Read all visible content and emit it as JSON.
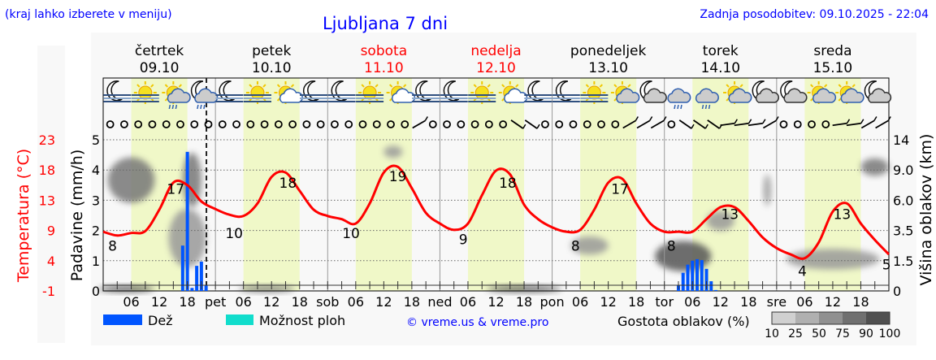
{
  "header": {
    "hint": "(kraj lahko izberete v meniju)",
    "title": "Ljubljana 7 dni",
    "updated": "Zadnja posodobitev: 09.10.2025 - 22:04"
  },
  "colors": {
    "title": "#0000ff",
    "temperature": "#ff0000",
    "rain": "#0055ff",
    "showers": "#11ddcc",
    "daylight": "#f0f8c8",
    "weekend": "#ff0000"
  },
  "days": [
    {
      "name": "četrtek",
      "date": "09.10",
      "abbr": "",
      "weekend": false
    },
    {
      "name": "petek",
      "date": "10.10",
      "abbr": "pet",
      "weekend": false
    },
    {
      "name": "sobota",
      "date": "11.10",
      "abbr": "sob",
      "weekend": true
    },
    {
      "name": "nedelja",
      "date": "12.10",
      "abbr": "ned",
      "weekend": true
    },
    {
      "name": "ponedeljek",
      "date": "13.10",
      "abbr": "pon",
      "weekend": false
    },
    {
      "name": "torek",
      "date": "14.10",
      "abbr": "tor",
      "weekend": false
    },
    {
      "name": "sreda",
      "date": "15.10",
      "abbr": "sre",
      "weekend": false
    }
  ],
  "hour_labels": [
    "06",
    "12",
    "18"
  ],
  "icons": [
    "moon-fog",
    "sun-fog",
    "sun-cloud-rain",
    "moon-cloud-rain",
    "moon-fog",
    "sun-fog",
    "sun-cloud",
    "moon-fog",
    "moon-fog",
    "sun-fog",
    "sun-cloud",
    "moon-fog",
    "moon-fog",
    "sun-fog",
    "sun-cloud",
    "moon-fog",
    "moon-fog",
    "sun-fog",
    "sun-cloud-grey",
    "moon-cloud",
    "cloud-rain",
    "cloud-rain",
    "sun-cloud-grey",
    "moon-cloud",
    "moon-cloud",
    "sun-cloud-grey",
    "sun-cloud-grey",
    "moon-cloud"
  ],
  "wind": {
    "interval_hours": 3,
    "symbols": [
      "calm",
      "calm",
      "calm",
      "calm",
      "calm",
      "calm",
      "calm",
      "calm",
      "calm",
      "calm",
      "calm",
      "calm",
      "calm",
      "calm",
      "calm",
      "calm",
      "calm",
      "calm",
      "calm",
      "calm",
      "calm",
      "calm",
      "barb-sw",
      "calm",
      "calm",
      "calm",
      "calm",
      "calm",
      "calm",
      "barb-nw",
      "barb-nw",
      "calm",
      "calm",
      "calm",
      "calm",
      "calm",
      "calm",
      "barb-sw",
      "barb-sw",
      "barb-sw",
      "calm",
      "barb-nw",
      "barb-nw",
      "barb-nw",
      "barb-w",
      "barb-w",
      "barb-w",
      "barb-sw",
      "calm",
      "calm",
      "calm",
      "calm",
      "barb-w",
      "barb-w",
      "barb-sw",
      "barb-sw"
    ]
  },
  "legend": {
    "rain": "Dež",
    "showers": "Možnost ploh",
    "copyright": "© vreme.us & vreme.pro",
    "cloud_density": "Gostota oblakov (%)",
    "cloud_levels": [
      "10",
      "25",
      "50",
      "75",
      "90",
      "100"
    ],
    "cloud_colors": [
      "#d0d0d0",
      "#b0b0b0",
      "#909090",
      "#707070",
      "#505050"
    ]
  },
  "now_marker": "09.10 22:04",
  "chart_data": {
    "type": "line",
    "x_unit": "hours from 09.10 00:00",
    "xlim": [
      0,
      168
    ],
    "axes": {
      "temperature": {
        "label": "Temperatura (°C)",
        "ticks": [
          "-1",
          "4",
          "9",
          "13",
          "18",
          "23"
        ],
        "range": [
          -1,
          23
        ]
      },
      "precipitation": {
        "label": "Padavine (mm/h)",
        "ticks": [
          "0",
          "1",
          "2",
          "3",
          "4",
          "5"
        ],
        "range": [
          0,
          5
        ]
      },
      "cloud_height": {
        "label": "Višina oblakov (km)",
        "ticks": [
          "0",
          "1.5",
          "3.5",
          "6.0",
          "9.0",
          "14"
        ],
        "values": [
          0,
          1.5,
          3.5,
          6,
          9,
          14
        ]
      }
    },
    "grid": true,
    "temperature": {
      "name": "Temperatura",
      "x": [
        0,
        3,
        6,
        9,
        12,
        15,
        18,
        21,
        24,
        27,
        30,
        33,
        36,
        39,
        42,
        45,
        48,
        51,
        54,
        57,
        60,
        63,
        66,
        69,
        72,
        75,
        78,
        81,
        84,
        87,
        90,
        93,
        96,
        99,
        102,
        105,
        108,
        111,
        114,
        117,
        120,
        123,
        126,
        129,
        132,
        135,
        138,
        141,
        144,
        147,
        150,
        153,
        156,
        159,
        162,
        165,
        168
      ],
      "values": [
        8.4,
        7.8,
        8.2,
        8.5,
        11.9,
        16.2,
        15.8,
        13.2,
        12.0,
        11.1,
        10.9,
        12.9,
        17.1,
        17.8,
        14.9,
        11.9,
        10.9,
        10.4,
        9.7,
        12.9,
        17.8,
        18.7,
        15.3,
        11.4,
        9.7,
        8.7,
        9.7,
        14.2,
        18.1,
        17.5,
        12.7,
        10.4,
        9.1,
        8.4,
        8.7,
        11.9,
        16.2,
        16.8,
        12.9,
        9.7,
        8.4,
        8.4,
        8.4,
        10.4,
        12.3,
        12.3,
        10.1,
        7.5,
        5.8,
        4.8,
        4.2,
        6.7,
        11.6,
        12.9,
        9.7,
        7.1,
        4.8
      ]
    },
    "temperature_labels": [
      {
        "x": 2,
        "value": "8"
      },
      {
        "x": 15.5,
        "value": "17"
      },
      {
        "x": 28,
        "value": "10"
      },
      {
        "x": 39.5,
        "value": "18"
      },
      {
        "x": 53,
        "value": "10"
      },
      {
        "x": 63,
        "value": "19"
      },
      {
        "x": 77,
        "value": "9"
      },
      {
        "x": 86.5,
        "value": "18"
      },
      {
        "x": 101,
        "value": "8"
      },
      {
        "x": 110.5,
        "value": "17"
      },
      {
        "x": 121.5,
        "value": "8"
      },
      {
        "x": 134,
        "value": "13"
      },
      {
        "x": 149.5,
        "value": "4"
      },
      {
        "x": 158,
        "value": "13"
      },
      {
        "x": 167.5,
        "value": "5"
      }
    ],
    "rain": {
      "name": "Dež",
      "x": [
        17,
        18,
        19,
        20,
        21,
        22,
        123,
        124,
        125,
        126,
        127,
        128,
        129,
        130,
        131
      ],
      "values": [
        1.5,
        4.6,
        0.1,
        0.83,
        0.97,
        0.2,
        0.2,
        0.6,
        0.87,
        1.0,
        1.05,
        1.02,
        0.73,
        0.32,
        0.03
      ]
    },
    "cloud_density": [
      {
        "x": 6,
        "km": 8,
        "dx": 5,
        "dkm": 2.5,
        "density": 75
      },
      {
        "x": 18,
        "km": 3,
        "dx": 4,
        "dkm": 2,
        "density": 50
      },
      {
        "x": 19,
        "km": 8,
        "dx": 2,
        "dkm": 3,
        "density": 75
      },
      {
        "x": 5,
        "km": 0.1,
        "dx": 6,
        "dkm": 0.15,
        "density": 90
      },
      {
        "x": 35,
        "km": 0.1,
        "dx": 6,
        "dkm": 0.15,
        "density": 75
      },
      {
        "x": 62,
        "km": 12,
        "dx": 2,
        "dkm": 1,
        "density": 50
      },
      {
        "x": 90,
        "km": 0.1,
        "dx": 8,
        "dkm": 0.15,
        "density": 90
      },
      {
        "x": 104,
        "km": 2.5,
        "dx": 4,
        "dkm": 0.6,
        "density": 50
      },
      {
        "x": 124,
        "km": 1.8,
        "dx": 6,
        "dkm": 0.9,
        "density": 90
      },
      {
        "x": 132,
        "km": 4.3,
        "dx": 3,
        "dkm": 0.8,
        "density": 50
      },
      {
        "x": 142,
        "km": 7,
        "dx": 0.8,
        "dkm": 1.5,
        "density": 50
      },
      {
        "x": 156,
        "km": 1.6,
        "dx": 10,
        "dkm": 0.6,
        "density": 50
      },
      {
        "x": 165,
        "km": 9.5,
        "dx": 3,
        "dkm": 1.2,
        "density": 75
      }
    ]
  }
}
